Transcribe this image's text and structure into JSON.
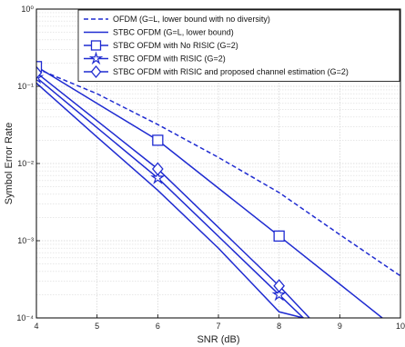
{
  "chart_data": {
    "type": "line",
    "title": "",
    "xlabel": "SNR (dB)",
    "ylabel": "Symbol Error Rate",
    "xlim": [
      4,
      10
    ],
    "ylim": [
      0.0001,
      1
    ],
    "y_scale": "log",
    "grid": true,
    "legend_position": "top-right",
    "x_ticks": [
      4,
      5,
      6,
      7,
      8,
      9,
      10
    ],
    "y_ticks": [
      {
        "value": 1,
        "label": "10⁰"
      },
      {
        "value": 0.1,
        "label": "10⁻¹"
      },
      {
        "value": 0.01,
        "label": "10⁻²"
      },
      {
        "value": 0.001,
        "label": "10⁻³"
      },
      {
        "value": 0.0001,
        "label": "10⁻⁴"
      }
    ],
    "line_color": "#1f2bd1",
    "series": [
      {
        "name": "OFDM (G=L, lower bound with no diversity)",
        "style": "dashed",
        "marker": "none",
        "x": [
          4,
          5,
          6,
          7,
          8,
          9,
          10
        ],
        "y": [
          0.17,
          0.08,
          0.032,
          0.012,
          0.0042,
          0.0012,
          0.00035
        ]
      },
      {
        "name": "STBC OFDM (G=L, lower bound)",
        "style": "solid",
        "marker": "none",
        "x": [
          4,
          5,
          6,
          7,
          8,
          8.4
        ],
        "y": [
          0.11,
          0.022,
          0.0045,
          0.0008,
          0.00012,
          0.0001
        ]
      },
      {
        "name": "STBC OFDM with No RISIC (G=2)",
        "style": "solid",
        "marker": "square",
        "x": [
          4,
          6,
          8,
          9.7
        ],
        "y": [
          0.18,
          0.02,
          0.00115,
          0.0001
        ]
      },
      {
        "name": "STBC OFDM with RISIC (G=2)",
        "style": "solid",
        "marker": "star",
        "x": [
          4,
          6,
          8,
          8.4
        ],
        "y": [
          0.13,
          0.0065,
          0.0002,
          0.0001
        ]
      },
      {
        "name": "STBC OFDM with RISIC and proposed channel estimation (G=2)",
        "style": "solid",
        "marker": "diamond",
        "x": [
          4,
          6,
          8,
          8.5
        ],
        "y": [
          0.15,
          0.0085,
          0.00026,
          0.0001
        ]
      }
    ]
  }
}
